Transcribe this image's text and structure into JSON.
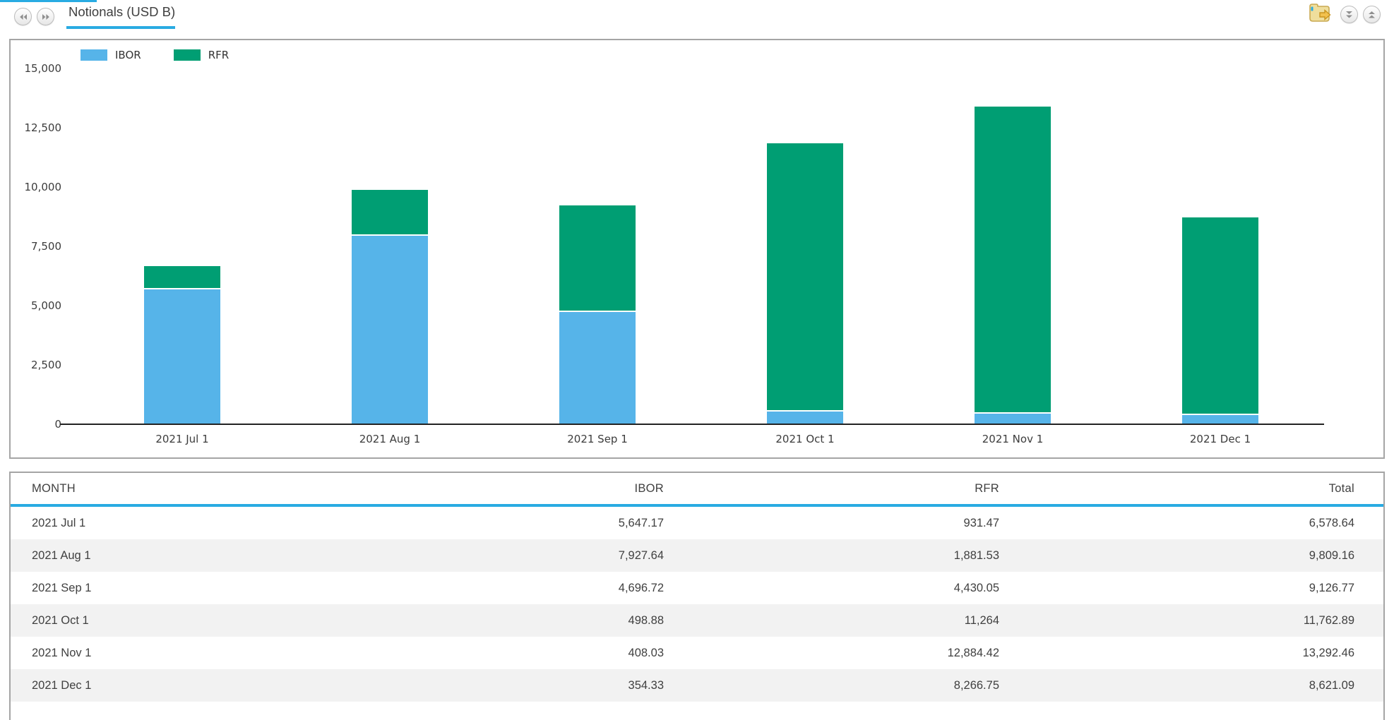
{
  "colors": {
    "accent": "#29ABE2",
    "panel_border": "#A5A5A5",
    "text": "#404040",
    "alt_row": "#F2F2F2",
    "axis_line": "#222222"
  },
  "header": {
    "title": "Notionals (USD B)",
    "nav_icons": [
      "page-previous-icon",
      "page-next-icon"
    ],
    "toolbar_icons": [
      "export-folder-icon",
      "collapse-all-icon",
      "expand-all-icon"
    ]
  },
  "chart_data": {
    "type": "bar",
    "stacked": true,
    "title": "Notionals (USD B)",
    "categories": [
      "2021 Jul 1",
      "2021 Aug 1",
      "2021 Sep 1",
      "2021 Oct 1",
      "2021 Nov 1",
      "2021 Dec 1"
    ],
    "series": [
      {
        "name": "IBOR",
        "color": "#56B4E9",
        "values": [
          5647.17,
          7927.64,
          4696.72,
          498.88,
          408.03,
          354.33
        ]
      },
      {
        "name": "RFR",
        "color": "#009E73",
        "values": [
          931.47,
          1881.53,
          4430.05,
          11264,
          12884.42,
          8266.75
        ]
      }
    ],
    "totals": [
      6578.64,
      9809.16,
      9126.77,
      11762.89,
      13292.46,
      8621.09
    ],
    "xlabel": "",
    "ylabel": "",
    "ylim": [
      0,
      15000
    ],
    "yticks": [
      0,
      2500,
      5000,
      7500,
      10000,
      12500,
      15000
    ],
    "ytick_labels": [
      "0",
      "2,500",
      "5,000",
      "7,500",
      "10,000",
      "12,500",
      "15,000"
    ],
    "legend_position": "top-left",
    "grid": false
  },
  "table": {
    "columns": [
      "MONTH",
      "IBOR",
      "RFR",
      "Total"
    ],
    "rows": [
      {
        "month": "2021 Jul 1",
        "ibor": "5,647.17",
        "rfr": "931.47",
        "total": "6,578.64"
      },
      {
        "month": "2021 Aug 1",
        "ibor": "7,927.64",
        "rfr": "1,881.53",
        "total": "9,809.16"
      },
      {
        "month": "2021 Sep 1",
        "ibor": "4,696.72",
        "rfr": "4,430.05",
        "total": "9,126.77"
      },
      {
        "month": "2021 Oct 1",
        "ibor": "498.88",
        "rfr": "11,264",
        "total": "11,762.89"
      },
      {
        "month": "2021 Nov 1",
        "ibor": "408.03",
        "rfr": "12,884.42",
        "total": "13,292.46"
      },
      {
        "month": "2021 Dec 1",
        "ibor": "354.33",
        "rfr": "8,266.75",
        "total": "8,621.09"
      }
    ]
  }
}
